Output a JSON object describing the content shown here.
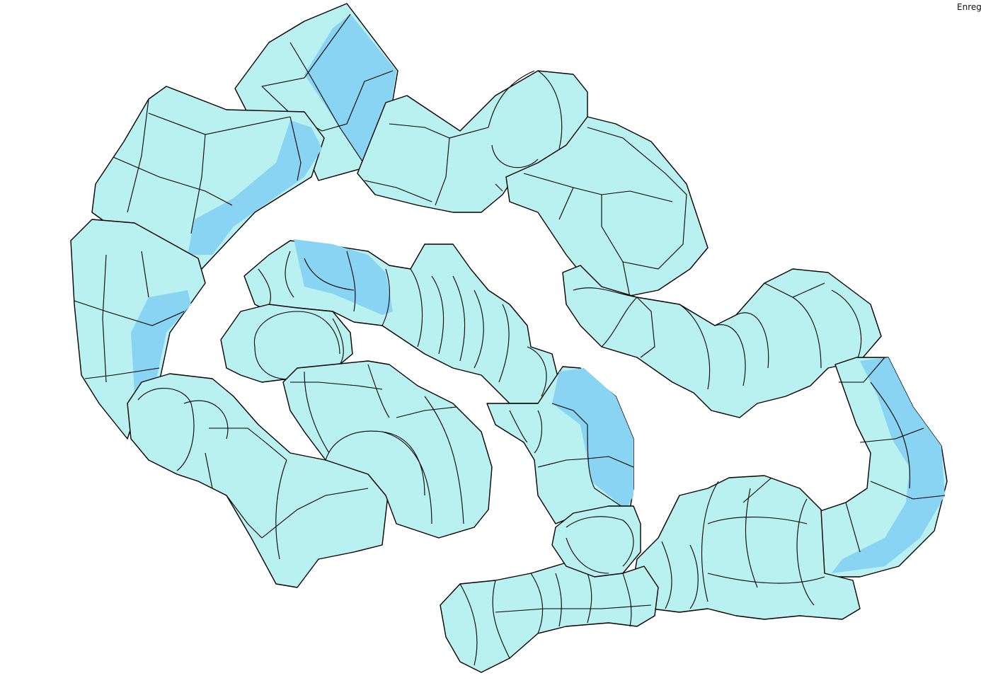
{
  "toolbar": {
    "save_label": "Enreg"
  },
  "colors": {
    "background": "#ffffff",
    "tube_fill": "#b9f0f0",
    "tube_highlight": "#88d4f2",
    "outline": "#000000"
  },
  "scene": {
    "description_icon": "3d-tube-model-icon"
  }
}
